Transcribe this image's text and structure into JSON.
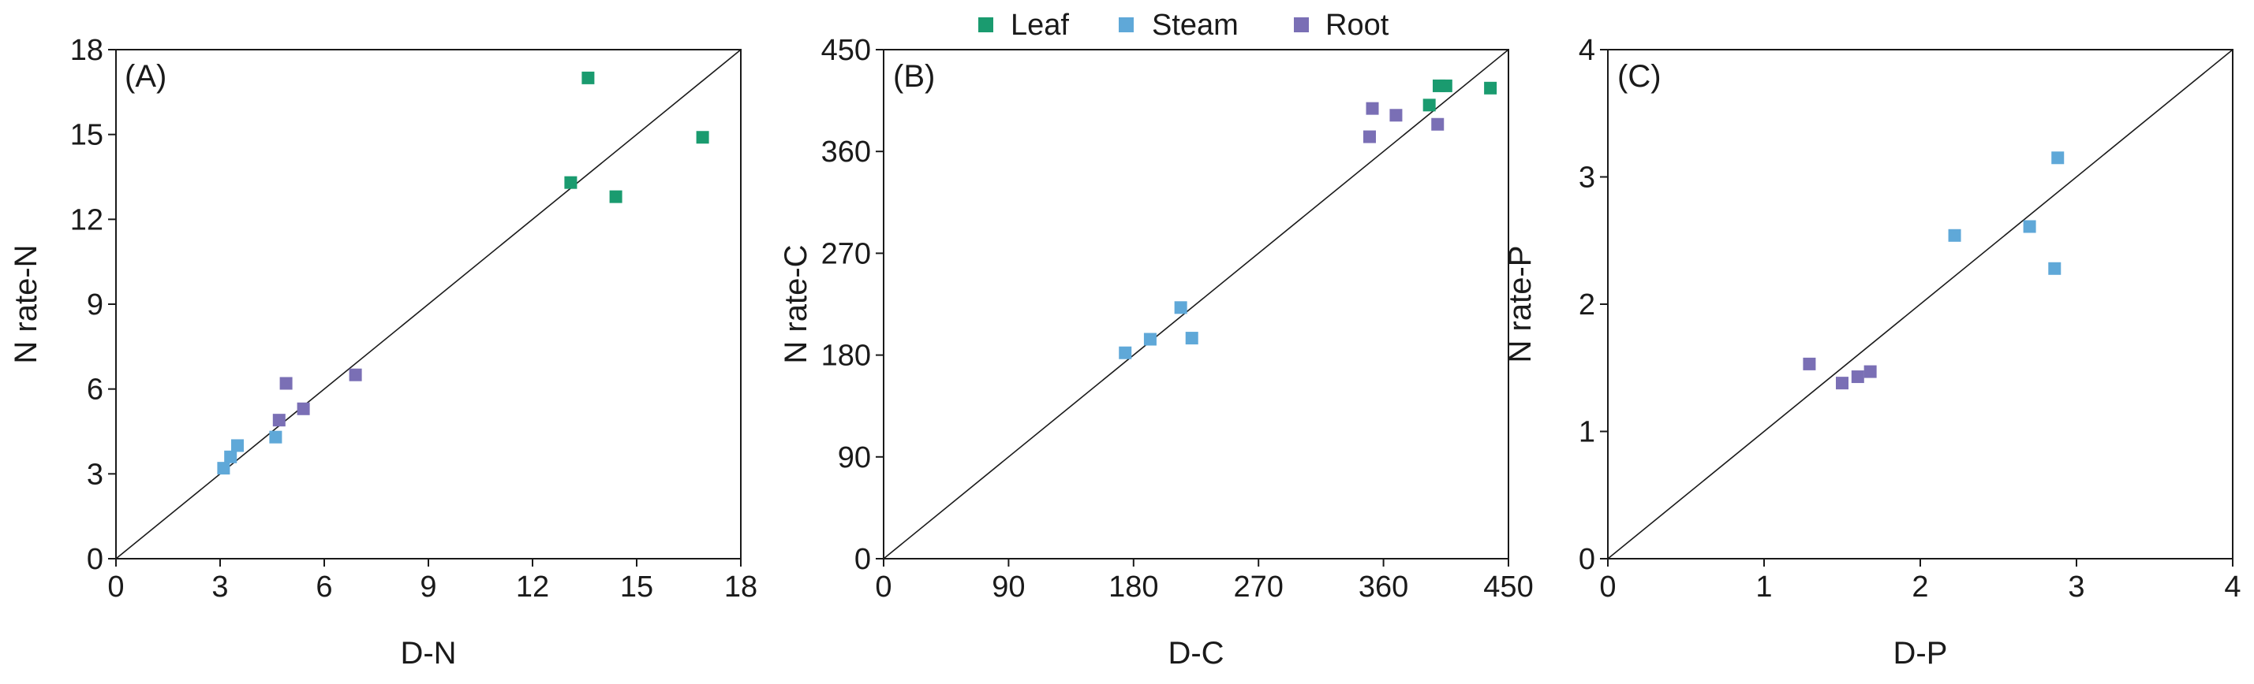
{
  "legend": {
    "placement": "top-center",
    "entries": [
      {
        "label": "Leaf",
        "color": "#1a9b6f"
      },
      {
        "label": "Steam",
        "color": "#5fa8d8"
      },
      {
        "label": "Root",
        "color": "#7a6fb5"
      }
    ]
  },
  "colors": {
    "Leaf": "#1a9b6f",
    "Steam": "#5fa8d8",
    "Root": "#7a6fb5",
    "axis": "#1a1a1a"
  },
  "chart_data": [
    {
      "type": "scatter",
      "panel_label": "(A)",
      "xlabel": "D-N",
      "ylabel": "N rate-N",
      "xlim": [
        0,
        18
      ],
      "ylim": [
        0,
        18
      ],
      "xticks": [
        0,
        3,
        6,
        9,
        12,
        15,
        18
      ],
      "yticks": [
        0,
        3,
        6,
        9,
        12,
        15,
        18
      ],
      "grid": false,
      "reference_line": "1:1",
      "series": [
        {
          "name": "Leaf",
          "points": [
            [
              13.1,
              13.3
            ],
            [
              13.6,
              17.0
            ],
            [
              14.4,
              12.8
            ],
            [
              16.9,
              14.9
            ]
          ]
        },
        {
          "name": "Steam",
          "points": [
            [
              3.1,
              3.2
            ],
            [
              3.3,
              3.6
            ],
            [
              3.5,
              4.0
            ],
            [
              4.6,
              4.3
            ]
          ]
        },
        {
          "name": "Root",
          "points": [
            [
              4.7,
              4.9
            ],
            [
              4.9,
              6.2
            ],
            [
              5.4,
              5.3
            ],
            [
              6.9,
              6.5
            ]
          ]
        }
      ]
    },
    {
      "type": "scatter",
      "panel_label": "(B)",
      "xlabel": "D-C",
      "ylabel": "N rate-C",
      "xlim": [
        0,
        450
      ],
      "ylim": [
        0,
        450
      ],
      "xticks": [
        0,
        90,
        180,
        270,
        360,
        450
      ],
      "yticks": [
        0,
        90,
        180,
        270,
        360,
        450
      ],
      "grid": false,
      "reference_line": "1:1",
      "series": [
        {
          "name": "Leaf",
          "points": [
            [
              393,
              401
            ],
            [
              400,
              418
            ],
            [
              405,
              418
            ],
            [
              437,
              416
            ]
          ]
        },
        {
          "name": "Steam",
          "points": [
            [
              174,
              182
            ],
            [
              192,
              194
            ],
            [
              214,
              222
            ],
            [
              222,
              195
            ]
          ]
        },
        {
          "name": "Root",
          "points": [
            [
              350,
              373
            ],
            [
              352,
              398
            ],
            [
              369,
              392
            ],
            [
              399,
              384
            ]
          ]
        }
      ]
    },
    {
      "type": "scatter",
      "panel_label": "(C)",
      "xlabel": "D-P",
      "ylabel": "N rate-P",
      "xlim": [
        0,
        4
      ],
      "ylim": [
        0,
        4
      ],
      "xticks": [
        0,
        1,
        2,
        3,
        4
      ],
      "yticks": [
        0,
        1,
        2,
        3,
        4
      ],
      "grid": false,
      "reference_line": "1:1",
      "series": [
        {
          "name": "Steam",
          "points": [
            [
              2.22,
              2.54
            ],
            [
              2.7,
              2.61
            ],
            [
              2.86,
              2.28
            ],
            [
              2.88,
              3.15
            ]
          ]
        },
        {
          "name": "Root",
          "points": [
            [
              1.29,
              1.53
            ],
            [
              1.5,
              1.38
            ],
            [
              1.6,
              1.43
            ],
            [
              1.68,
              1.47
            ]
          ]
        }
      ]
    }
  ]
}
